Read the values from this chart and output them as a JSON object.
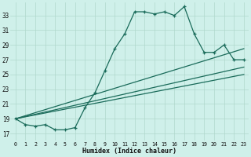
{
  "bg_color": "#cff0ea",
  "line_color": "#1a6b5a",
  "grid_color": "#b0d8cc",
  "xlabel": "Humidex (Indice chaleur)",
  "ylabel_ticks": [
    17,
    19,
    21,
    23,
    25,
    27,
    29,
    31,
    33
  ],
  "xlabel_ticks": [
    0,
    1,
    2,
    3,
    4,
    5,
    6,
    7,
    8,
    9,
    10,
    11,
    12,
    13,
    14,
    15,
    16,
    17,
    18,
    19,
    20,
    21,
    22,
    23
  ],
  "xlim": [
    -0.5,
    23.5
  ],
  "ylim": [
    16.0,
    34.8
  ],
  "series1_x": [
    0,
    1,
    2,
    3,
    4,
    5,
    6,
    7,
    8,
    9,
    10,
    11,
    12,
    13,
    14,
    15,
    16,
    17,
    18,
    19,
    20,
    21,
    22,
    23
  ],
  "series1_y": [
    19.0,
    18.2,
    18.0,
    18.2,
    17.5,
    17.5,
    17.8,
    20.5,
    22.5,
    25.5,
    28.5,
    30.5,
    33.5,
    33.5,
    33.2,
    33.5,
    33.0,
    34.2,
    30.5,
    28.0,
    28.0,
    29.0,
    27.0,
    27.0
  ],
  "series2_x": [
    0,
    23
  ],
  "series2_y": [
    19.0,
    28.5
  ],
  "series3_x": [
    0,
    23
  ],
  "series3_y": [
    19.0,
    26.0
  ],
  "series4_x": [
    0,
    23
  ],
  "series4_y": [
    19.0,
    25.0
  ]
}
